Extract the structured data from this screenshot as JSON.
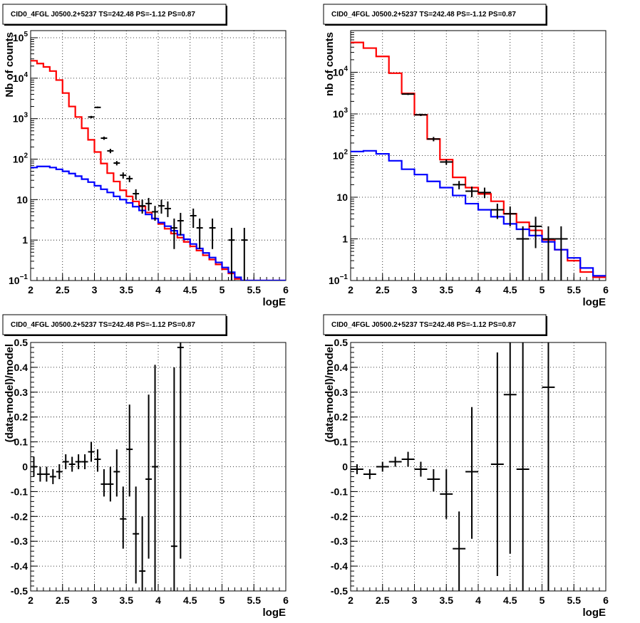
{
  "chart_data": [
    {
      "type": "line",
      "title": "CID0_4FGL J0500.2+5237 TS=242.48 PS=-1.12 PS=0.87",
      "xlabel": "logE",
      "ylabel": "Nb of counts",
      "scale": "log",
      "xlim": [
        2,
        6
      ],
      "ylim": [
        0.1,
        150000
      ],
      "grid": true,
      "xticks": [
        "2",
        "2.5",
        "3",
        "3.5",
        "4",
        "4.5",
        "5",
        "5.5",
        "6"
      ],
      "yticks": [
        {
          "value": 0.1,
          "base": "10",
          "exp": "−1"
        },
        {
          "value": 1,
          "label": "1"
        },
        {
          "value": 10,
          "label": "10"
        },
        {
          "value": 100,
          "base": "10",
          "exp": "2"
        },
        {
          "value": 1000,
          "base": "10",
          "exp": "3"
        },
        {
          "value": 10000,
          "base": "10",
          "exp": "4"
        },
        {
          "value": 100000,
          "base": "10",
          "exp": "5"
        }
      ],
      "series": [
        {
          "color": "#ff0000",
          "bin_width": 0.1,
          "start": 2.0,
          "values": [
            27000,
            23000,
            19000,
            15000,
            9000,
            4300,
            2000,
            1100,
            580,
            300,
            150,
            78,
            45,
            28,
            17,
            12,
            9,
            6.8,
            4.8,
            3.4,
            2.5,
            1.9,
            1.45,
            1.15,
            0.9,
            0.7,
            0.55,
            0.42,
            0.33,
            0.25,
            0.19,
            0.15,
            0.11,
            0.1,
            0.1,
            0.1,
            0.1,
            0.1,
            0.1,
            0.1
          ]
        },
        {
          "color": "#0000ff",
          "bin_width": 0.1,
          "start": 2.0,
          "values": [
            62,
            66,
            66,
            62,
            56,
            50,
            44,
            38,
            32,
            27,
            22,
            18,
            15,
            12,
            10,
            8.3,
            6.7,
            5.4,
            4.3,
            3.4,
            2.7,
            2.2,
            1.7,
            1.35,
            1.05,
            0.8,
            0.62,
            0.48,
            0.37,
            0.28,
            0.21,
            0.16,
            0.12,
            0.1,
            0.1,
            0.1,
            0.1,
            0.1,
            0.1,
            0.1
          ]
        },
        {
          "type": "points",
          "color": "#000000",
          "bin_width": 0.1,
          "points": [
            {
              "x": 2.95,
              "y": 1100,
              "lo": 1030,
              "hi": 1170
            },
            {
              "x": 3.05,
              "y": 1900,
              "lo": 1810,
              "hi": 1990
            },
            {
              "x": 3.15,
              "y": 330,
              "lo": 300,
              "hi": 360
            },
            {
              "x": 3.25,
              "y": 160,
              "lo": 140,
              "hi": 180
            },
            {
              "x": 3.35,
              "y": 80,
              "lo": 70,
              "hi": 90
            },
            {
              "x": 3.45,
              "y": 40,
              "lo": 33,
              "hi": 47
            },
            {
              "x": 3.55,
              "y": 33,
              "lo": 27,
              "hi": 39
            },
            {
              "x": 3.65,
              "y": 14,
              "lo": 10,
              "hi": 18
            },
            {
              "x": 3.75,
              "y": 7,
              "lo": 4.5,
              "hi": 10
            },
            {
              "x": 3.85,
              "y": 8,
              "lo": 5.3,
              "hi": 11
            },
            {
              "x": 3.95,
              "y": 5,
              "lo": 3,
              "hi": 7
            },
            {
              "x": 4.05,
              "y": 7,
              "lo": 4.5,
              "hi": 10
            },
            {
              "x": 4.15,
              "y": 6,
              "lo": 3.7,
              "hi": 9
            },
            {
              "x": 4.25,
              "y": 2,
              "lo": 0.6,
              "hi": 3.4
            },
            {
              "x": 4.35,
              "y": 3,
              "lo": 1.3,
              "hi": 4.7
            },
            {
              "x": 4.55,
              "y": 4,
              "lo": 2,
              "hi": 6
            },
            {
              "x": 4.65,
              "y": 2,
              "lo": 0.6,
              "hi": 3.4
            },
            {
              "x": 4.85,
              "y": 2,
              "lo": 0.6,
              "hi": 3.4
            },
            {
              "x": 5.15,
              "y": 1,
              "lo": 0.1,
              "hi": 2
            },
            {
              "x": 5.35,
              "y": 1,
              "lo": 0.1,
              "hi": 2
            }
          ]
        }
      ]
    },
    {
      "type": "line",
      "title": "CID0_4FGL J0500.2+5237 TS=242.48 PS=-1.12 PS=0.87",
      "xlabel": "logE",
      "ylabel": "nb of counts",
      "scale": "log",
      "xlim": [
        2,
        6
      ],
      "ylim": [
        0.1,
        100000
      ],
      "grid": true,
      "xticks": [
        "2",
        "2.5",
        "3",
        "3.5",
        "4",
        "4.5",
        "5",
        "5.5",
        "6"
      ],
      "yticks": [
        {
          "value": 0.1,
          "base": "10",
          "exp": "−1"
        },
        {
          "value": 1,
          "label": "1"
        },
        {
          "value": 10,
          "label": "10"
        },
        {
          "value": 100,
          "base": "10",
          "exp": "2"
        },
        {
          "value": 1000,
          "base": "10",
          "exp": "3"
        },
        {
          "value": 10000,
          "base": "10",
          "exp": "4"
        }
      ],
      "series": [
        {
          "color": "#ff0000",
          "bin_width": 0.2,
          "start": 2.0,
          "values": [
            52000,
            38000,
            24000,
            9500,
            3100,
            950,
            250,
            80,
            30,
            17,
            12,
            8,
            4,
            2.5,
            1.6,
            0.95,
            0.55,
            0.3,
            0.16,
            0.12
          ]
        },
        {
          "color": "#0000ff",
          "bin_width": 0.2,
          "start": 2.0,
          "values": [
            125,
            130,
            110,
            75,
            47,
            35,
            24,
            17,
            11,
            7,
            5,
            3.4,
            2.3,
            1.7,
            1.2,
            0.85,
            0.55,
            0.35,
            0.2,
            0.13
          ]
        },
        {
          "type": "points",
          "color": "#000000",
          "bin_width": 0.2,
          "points": [
            {
              "x": 2.9,
              "y": 3000,
              "lo": 2850,
              "hi": 3150
            },
            {
              "x": 3.1,
              "y": 950,
              "lo": 890,
              "hi": 1010
            },
            {
              "x": 3.3,
              "y": 250,
              "lo": 220,
              "hi": 280
            },
            {
              "x": 3.5,
              "y": 70,
              "lo": 60,
              "hi": 80
            },
            {
              "x": 3.7,
              "y": 20,
              "lo": 15.5,
              "hi": 24.5
            },
            {
              "x": 3.9,
              "y": 14,
              "lo": 10,
              "hi": 18
            },
            {
              "x": 4.1,
              "y": 13,
              "lo": 9.5,
              "hi": 17
            },
            {
              "x": 4.3,
              "y": 5,
              "lo": 3,
              "hi": 7
            },
            {
              "x": 4.5,
              "y": 4,
              "lo": 2,
              "hi": 6
            },
            {
              "x": 4.7,
              "y": 1,
              "lo": 0.1,
              "hi": 2
            },
            {
              "x": 4.9,
              "y": 2,
              "lo": 0.6,
              "hi": 3.4
            },
            {
              "x": 5.1,
              "y": 1,
              "lo": 0.1,
              "hi": 2
            },
            {
              "x": 5.3,
              "y": 1,
              "lo": 0.1,
              "hi": 2
            }
          ]
        }
      ]
    },
    {
      "type": "scatter",
      "title": "CID0_4FGL J0500.2+5237 TS=242.48 PS=-1.12 PS=0.87",
      "xlabel": "logE",
      "ylabel": "(data-model)/model",
      "scale": "linear",
      "xlim": [
        2,
        6
      ],
      "ylim": [
        -0.5,
        0.5
      ],
      "grid": true,
      "xticks": [
        "2",
        "2.5",
        "3",
        "3.5",
        "4",
        "4.5",
        "5",
        "5.5",
        "6"
      ],
      "yticks": [
        "-0.5",
        "-0.4",
        "-0.3",
        "-0.2",
        "-0.1",
        "0",
        "0.1",
        "0.2",
        "0.3",
        "0.4",
        "0.5"
      ],
      "series": [
        {
          "type": "points",
          "color": "#000000",
          "bin_width": 0.1,
          "points": [
            {
              "x": 2.05,
              "y": 0.0,
              "lo": -0.04,
              "hi": 0.04
            },
            {
              "x": 2.15,
              "y": -0.03,
              "lo": -0.06,
              "hi": 0.0
            },
            {
              "x": 2.25,
              "y": -0.03,
              "lo": -0.06,
              "hi": 0.0
            },
            {
              "x": 2.35,
              "y": -0.04,
              "lo": -0.07,
              "hi": -0.01
            },
            {
              "x": 2.45,
              "y": -0.02,
              "lo": -0.05,
              "hi": 0.01
            },
            {
              "x": 2.55,
              "y": 0.02,
              "lo": -0.01,
              "hi": 0.05
            },
            {
              "x": 2.65,
              "y": 0.01,
              "lo": -0.02,
              "hi": 0.04
            },
            {
              "x": 2.75,
              "y": 0.02,
              "lo": -0.01,
              "hi": 0.05
            },
            {
              "x": 2.85,
              "y": 0.02,
              "lo": -0.01,
              "hi": 0.05
            },
            {
              "x": 2.95,
              "y": 0.06,
              "lo": 0.02,
              "hi": 0.1
            },
            {
              "x": 3.05,
              "y": 0.03,
              "lo": -0.02,
              "hi": 0.07
            },
            {
              "x": 3.15,
              "y": -0.07,
              "lo": -0.12,
              "hi": -0.01
            },
            {
              "x": 3.25,
              "y": -0.07,
              "lo": -0.14,
              "hi": 0.0
            },
            {
              "x": 3.35,
              "y": -0.02,
              "lo": -0.12,
              "hi": 0.07
            },
            {
              "x": 3.45,
              "y": -0.21,
              "lo": -0.33,
              "hi": -0.08
            },
            {
              "x": 3.55,
              "y": 0.07,
              "lo": -0.12,
              "hi": 0.25
            },
            {
              "x": 3.65,
              "y": -0.27,
              "lo": -0.47,
              "hi": -0.08
            },
            {
              "x": 3.75,
              "y": -0.42,
              "lo": -0.5,
              "hi": -0.2
            },
            {
              "x": 3.85,
              "y": -0.05,
              "lo": -0.37,
              "hi": 0.29
            },
            {
              "x": 3.95,
              "y": 0.0,
              "lo": -0.5,
              "hi": 0.41
            },
            {
              "x": 4.25,
              "y": -0.32,
              "lo": -0.5,
              "hi": 0.4
            },
            {
              "x": 4.35,
              "y": 0.48,
              "lo": -0.37,
              "hi": 0.5
            }
          ]
        }
      ]
    },
    {
      "type": "scatter",
      "title": "CID0_4FGL J0500.2+5237 TS=242.48 PS=-1.12 PS=0.87",
      "xlabel": "logE",
      "ylabel": "(data-model)/model",
      "scale": "linear",
      "xlim": [
        2,
        6
      ],
      "ylim": [
        -0.5,
        0.5
      ],
      "grid": true,
      "xticks": [
        "2",
        "2.5",
        "3",
        "3.5",
        "4",
        "4.5",
        "5",
        "5.5",
        "6"
      ],
      "yticks": [
        "-0.5",
        "-0.4",
        "-0.3",
        "-0.2",
        "-0.1",
        "0",
        "0.1",
        "0.2",
        "0.3",
        "0.4",
        "0.5"
      ],
      "series": [
        {
          "type": "points",
          "color": "#000000",
          "bin_width": 0.2,
          "points": [
            {
              "x": 2.1,
              "y": -0.01,
              "lo": -0.03,
              "hi": 0.01
            },
            {
              "x": 2.3,
              "y": -0.03,
              "lo": -0.05,
              "hi": -0.01
            },
            {
              "x": 2.5,
              "y": 0.0,
              "lo": -0.02,
              "hi": 0.02
            },
            {
              "x": 2.7,
              "y": 0.02,
              "lo": 0.0,
              "hi": 0.04
            },
            {
              "x": 2.9,
              "y": 0.03,
              "lo": 0.0,
              "hi": 0.06
            },
            {
              "x": 3.1,
              "y": -0.01,
              "lo": -0.04,
              "hi": 0.02
            },
            {
              "x": 3.3,
              "y": -0.05,
              "lo": -0.1,
              "hi": -0.01
            },
            {
              "x": 3.5,
              "y": -0.11,
              "lo": -0.21,
              "hi": -0.01
            },
            {
              "x": 3.7,
              "y": -0.33,
              "lo": -0.5,
              "hi": -0.18
            },
            {
              "x": 3.9,
              "y": -0.02,
              "lo": -0.29,
              "hi": 0.24
            },
            {
              "x": 4.3,
              "y": 0.01,
              "lo": -0.44,
              "hi": 0.46
            },
            {
              "x": 4.5,
              "y": 0.29,
              "lo": -0.35,
              "hi": 0.5
            },
            {
              "x": 4.7,
              "y": -0.01,
              "lo": -0.5,
              "hi": 0.5
            },
            {
              "x": 5.1,
              "y": 0.32,
              "lo": -0.5,
              "hi": 0.5
            }
          ]
        }
      ]
    }
  ]
}
